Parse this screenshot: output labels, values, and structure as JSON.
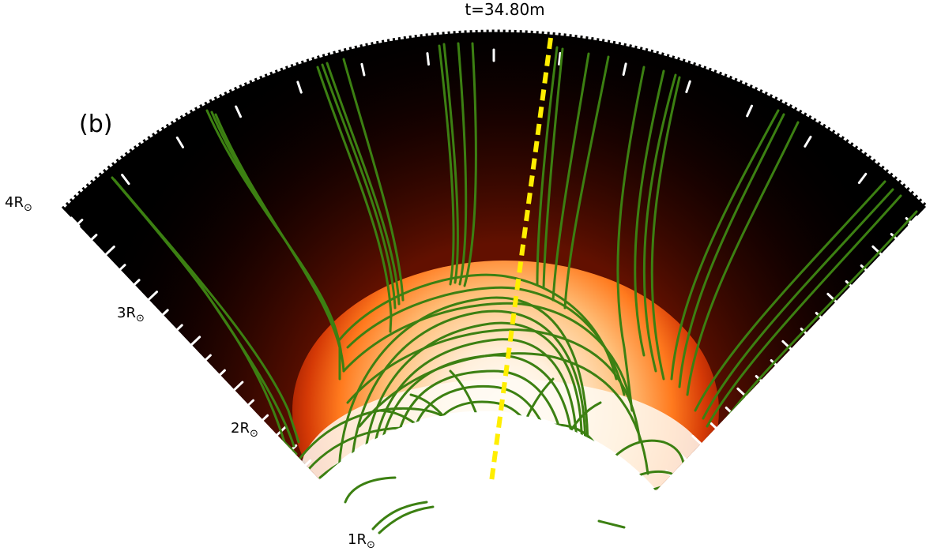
{
  "title": "t=34.80m",
  "panel_label": "(b)",
  "radius_labels": [
    {
      "prefix": "1R",
      "r": 1
    },
    {
      "prefix": "2R",
      "r": 2
    },
    {
      "prefix": "3R",
      "r": 3
    },
    {
      "prefix": "4R",
      "r": 4
    }
  ],
  "sun_symbol": "⊙",
  "colors": {
    "background": "#000000",
    "field_lines": "#3c8012",
    "cut_line": "#ffee00",
    "ticks": "#ffffff",
    "density_map": [
      "#ffffff",
      "#fff0dc",
      "#ffc07a",
      "#ff7a1e",
      "#d53a06",
      "#8a1200",
      "#3a0400",
      "#000000"
    ]
  }
}
